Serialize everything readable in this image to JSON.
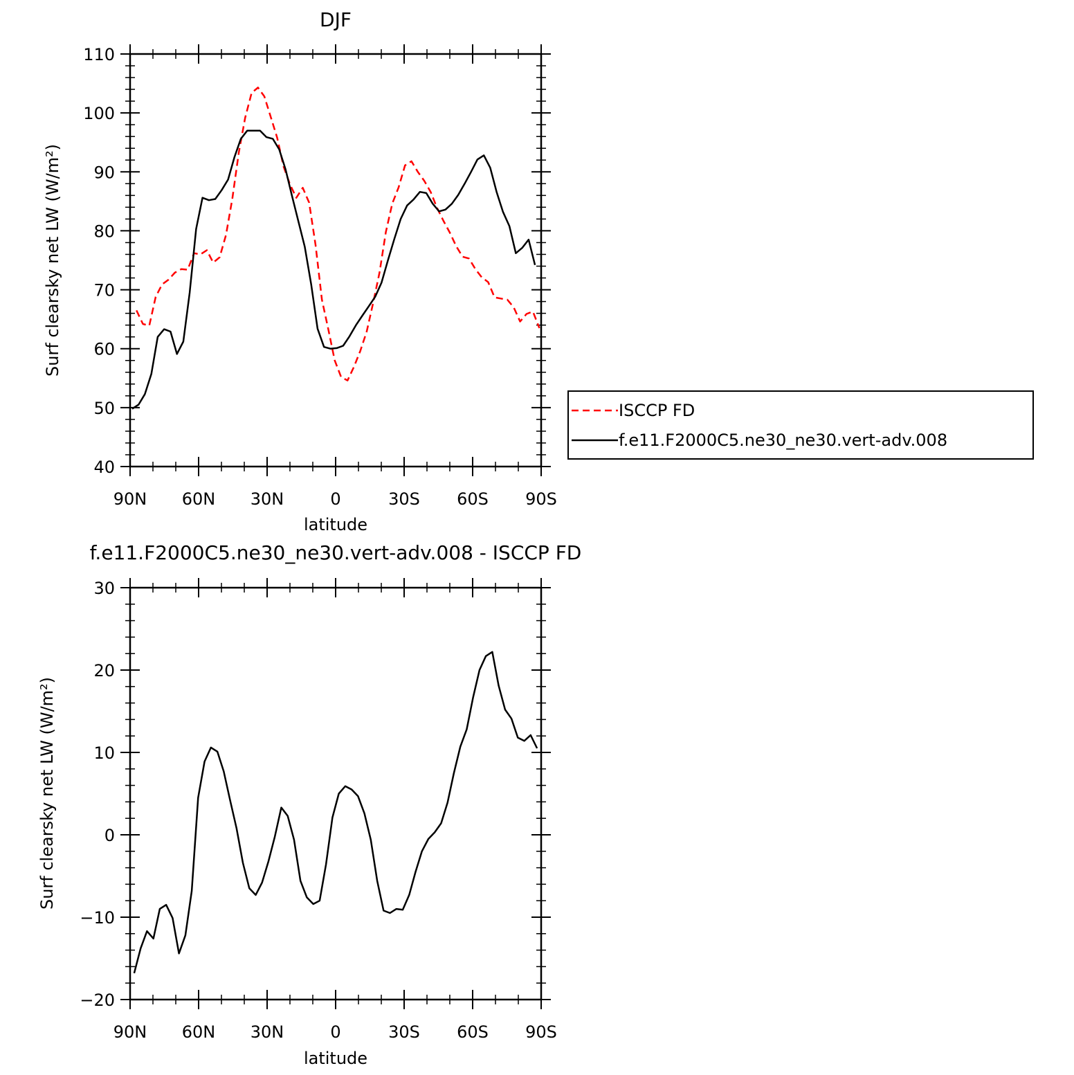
{
  "chart_data": [
    {
      "type": "line",
      "title": "DJF",
      "xlabel": "latitude",
      "ylabel": "Surf clearsky net LW (W/m²)",
      "xlim": [
        90,
        -90
      ],
      "ylim": [
        40,
        110
      ],
      "x_ticks": [
        90,
        60,
        30,
        0,
        -30,
        -60,
        -90
      ],
      "x_tick_labels": [
        "90N",
        "60N",
        "30N",
        "0",
        "30S",
        "60S",
        "90S"
      ],
      "y_ticks": [
        40,
        50,
        60,
        70,
        80,
        90,
        100,
        110
      ],
      "y_tick_labels": [
        "40",
        "50",
        "60",
        "70",
        "80",
        "90",
        "100",
        "110"
      ],
      "legend": "right",
      "grid": false,
      "series": [
        {
          "name": "ISCCP FD",
          "color": "#ff0000",
          "dash": "dashed",
          "x": [
            87.2,
            84.4,
            81.6,
            78.8,
            76.0,
            73.2,
            70.4,
            67.6,
            64.8,
            62.0,
            59.2,
            56.4,
            53.6,
            50.8,
            48.0,
            45.2,
            42.4,
            39.6,
            36.8,
            34.0,
            31.2,
            28.4,
            25.6,
            22.8,
            20.0,
            17.2,
            14.4,
            11.6,
            8.8,
            6.0,
            3.2,
            0.4,
            -2.4,
            -5.2,
            -8.0,
            -10.8,
            -13.6,
            -16.4,
            -19.2,
            -22.0,
            -24.8,
            -27.6,
            -30.4,
            -33.2,
            -36.0,
            -38.8,
            -41.6,
            -44.4,
            -47.2,
            -50.0,
            -52.8,
            -55.6,
            -58.4,
            -61.2,
            -64.0,
            -66.8,
            -69.6,
            -72.4,
            -75.2,
            -78.0,
            -80.8,
            -83.6,
            -86.4,
            -89.2
          ],
          "values": [
            66.5,
            64.2,
            63.9,
            68.8,
            70.9,
            71.7,
            72.9,
            73.5,
            73.4,
            76.2,
            76.0,
            76.7,
            74.6,
            75.5,
            79.3,
            85.5,
            93.3,
            99.2,
            103.4,
            104.3,
            102.8,
            99.3,
            95.8,
            90.9,
            87.9,
            85.6,
            87.3,
            84.8,
            77.6,
            68.3,
            63.3,
            58.0,
            55.2,
            54.6,
            56.9,
            59.6,
            62.9,
            67.7,
            72.9,
            79.8,
            84.6,
            87.4,
            91.1,
            91.8,
            90.0,
            88.5,
            86.6,
            83.9,
            81.7,
            79.7,
            77.4,
            75.6,
            75.3,
            73.5,
            72.1,
            71.3,
            68.7,
            68.5,
            68.3,
            67.0,
            64.6,
            65.9,
            66.3,
            63.5
          ]
        },
        {
          "name": "f.e11.F2000C5.ne30_ne30.vert-adv.008",
          "color": "#000000",
          "dash": "solid",
          "x": [
            89.1,
            86.3,
            83.5,
            80.7,
            77.9,
            75.1,
            72.3,
            69.5,
            66.7,
            63.9,
            61.1,
            58.3,
            55.5,
            52.7,
            49.9,
            47.1,
            44.3,
            41.5,
            38.7,
            35.9,
            33.1,
            30.3,
            27.5,
            24.7,
            21.9,
            19.1,
            16.3,
            13.5,
            10.7,
            7.9,
            5.1,
            2.3,
            -0.5,
            -3.3,
            -6.1,
            -8.9,
            -11.7,
            -14.5,
            -17.3,
            -20.1,
            -22.9,
            -25.7,
            -28.5,
            -31.3,
            -34.1,
            -36.9,
            -39.7,
            -42.5,
            -45.3,
            -48.1,
            -50.9,
            -53.7,
            -56.5,
            -59.3,
            -62.1,
            -64.9,
            -67.7,
            -70.5,
            -73.3,
            -76.1,
            -78.9,
            -81.7,
            -84.5,
            -87.3
          ],
          "values": [
            49.8,
            50.5,
            52.3,
            55.7,
            62.0,
            63.3,
            62.9,
            59.1,
            61.2,
            69.5,
            80.3,
            85.6,
            85.2,
            85.4,
            86.9,
            88.7,
            92.5,
            95.6,
            97.0,
            97.0,
            97.0,
            95.9,
            95.6,
            93.8,
            90.4,
            85.9,
            81.6,
            77.3,
            70.9,
            63.4,
            60.3,
            60.0,
            60.1,
            60.5,
            62.1,
            64.0,
            65.6,
            67.2,
            68.8,
            71.2,
            75.0,
            78.6,
            82.0,
            84.3,
            85.3,
            86.6,
            86.4,
            84.6,
            83.3,
            83.6,
            84.6,
            86.1,
            88.0,
            90.0,
            92.1,
            92.8,
            90.7,
            86.6,
            83.2,
            80.8,
            76.2,
            77.1,
            78.5,
            74.2
          ]
        }
      ]
    },
    {
      "type": "line",
      "title": "f.e11.F2000C5.ne30_ne30.vert-adv.008 - ISCCP FD",
      "xlabel": "latitude",
      "ylabel": "Surf clearsky net LW (W/m²)",
      "xlim": [
        90,
        -90
      ],
      "ylim": [
        -20,
        30
      ],
      "x_ticks": [
        90,
        60,
        30,
        0,
        -30,
        -60,
        -90
      ],
      "x_tick_labels": [
        "90N",
        "60N",
        "30N",
        "0",
        "30S",
        "60S",
        "90S"
      ],
      "y_ticks": [
        -20,
        -10,
        0,
        10,
        20,
        30
      ],
      "y_tick_labels": [
        "−20",
        "−10",
        "0",
        "10",
        "20",
        "30"
      ],
      "grid": false,
      "series": [
        {
          "color": "#000000",
          "dash": "solid",
          "x": [
            88.2,
            85.4,
            82.6,
            79.8,
            77.0,
            74.2,
            71.4,
            68.6,
            65.8,
            63.0,
            60.2,
            57.4,
            54.6,
            51.8,
            49.0,
            46.2,
            43.4,
            40.6,
            37.8,
            35.0,
            32.2,
            29.4,
            26.6,
            23.8,
            21.0,
            18.2,
            15.4,
            12.6,
            9.8,
            7.0,
            4.2,
            1.4,
            -1.4,
            -4.2,
            -7.0,
            -9.8,
            -12.6,
            -15.4,
            -18.2,
            -21.0,
            -23.8,
            -26.6,
            -29.4,
            -32.2,
            -35.0,
            -37.8,
            -40.6,
            -43.4,
            -46.2,
            -49.0,
            -51.8,
            -54.6,
            -57.4,
            -60.2,
            -63.0,
            -65.8,
            -68.6,
            -71.4,
            -74.2,
            -77.0,
            -79.8,
            -82.6,
            -85.4,
            -88.2
          ],
          "values": [
            -16.8,
            -13.8,
            -11.7,
            -12.6,
            -9.0,
            -8.5,
            -10.1,
            -14.4,
            -12.2,
            -6.8,
            4.5,
            8.9,
            10.6,
            10.1,
            7.7,
            4.2,
            0.8,
            -3.4,
            -6.5,
            -7.3,
            -5.8,
            -3.2,
            -0.2,
            3.3,
            2.3,
            -0.6,
            -5.6,
            -7.6,
            -8.4,
            -8.0,
            -3.6,
            2.1,
            5.0,
            5.9,
            5.5,
            4.7,
            2.6,
            -0.6,
            -5.6,
            -9.2,
            -9.5,
            -9.0,
            -9.1,
            -7.3,
            -4.5,
            -2.0,
            -0.5,
            0.3,
            1.4,
            3.9,
            7.5,
            10.7,
            12.8,
            16.7,
            20.0,
            21.7,
            22.2,
            18.1,
            15.2,
            14.1,
            11.8,
            11.4,
            12.1,
            10.5
          ]
        }
      ]
    }
  ]
}
